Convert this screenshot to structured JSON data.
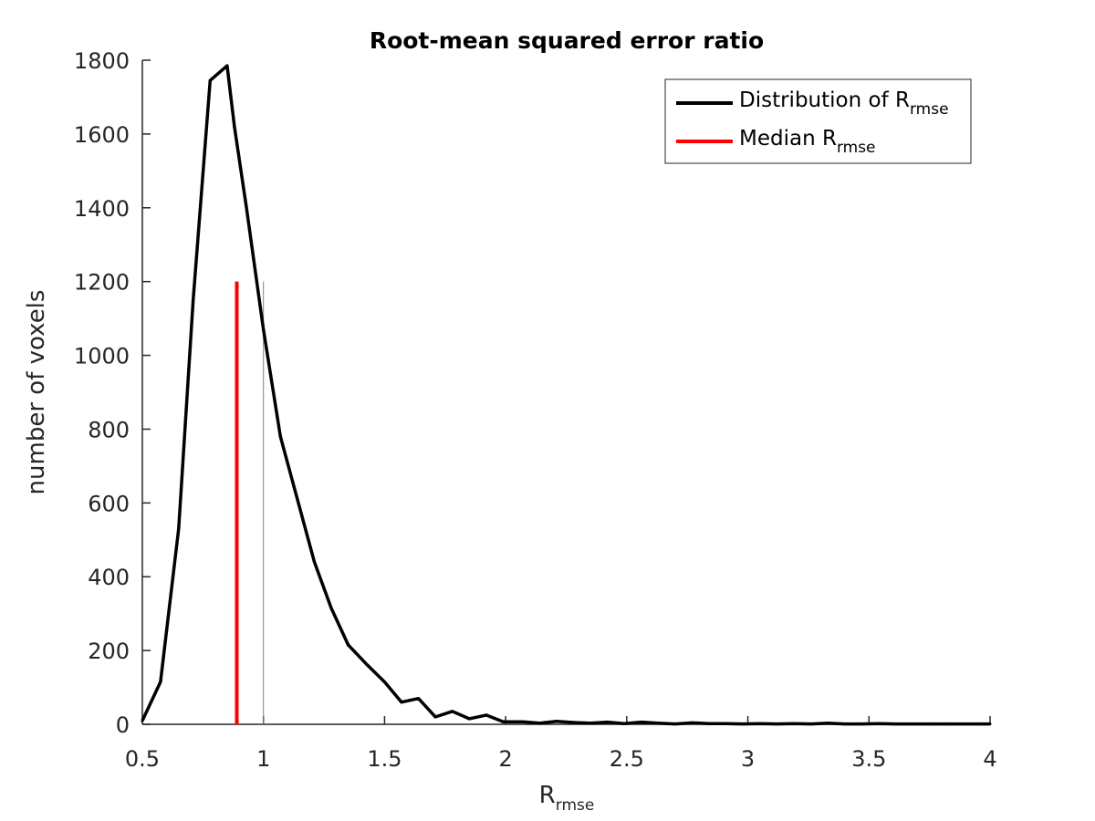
{
  "chart_data": {
    "type": "line",
    "title": "Root-mean squared error ratio",
    "xlabel": "R",
    "xlabel_sub": "rmse",
    "ylabel": "number of voxels",
    "xlim": [
      0.5,
      4
    ],
    "ylim": [
      0,
      1800
    ],
    "xticks": [
      0.5,
      1,
      1.5,
      2,
      2.5,
      3,
      3.5,
      4
    ],
    "xtick_labels": [
      "0.5",
      "1",
      "1.5",
      "2",
      "2.5",
      "3",
      "3.5",
      "4"
    ],
    "yticks": [
      0,
      200,
      400,
      600,
      800,
      1000,
      1200,
      1400,
      1600,
      1800
    ],
    "ytick_labels": [
      "0",
      "200",
      "400",
      "600",
      "800",
      "1000",
      "1200",
      "1400",
      "1600",
      "1800"
    ],
    "grid": false,
    "legend_position": "top-right",
    "legend": [
      {
        "label": "Distribution of R",
        "sub": "rmse",
        "color": "#000000"
      },
      {
        "label": "Median R",
        "sub": "rmse",
        "color": "#ff0000"
      }
    ],
    "series": [
      {
        "name": "Distribution of Rrmse",
        "color": "#000000",
        "x": [
          0.5,
          0.575,
          0.65,
          0.71,
          0.78,
          0.85,
          0.88,
          0.93,
          1.0,
          1.07,
          1.14,
          1.21,
          1.28,
          1.35,
          1.43,
          1.5,
          1.57,
          1.64,
          1.71,
          1.78,
          1.85,
          1.92,
          1.99,
          2.07,
          2.14,
          2.21,
          2.28,
          2.35,
          2.42,
          2.49,
          2.56,
          2.63,
          2.7,
          2.77,
          2.84,
          2.91,
          2.98,
          3.05,
          3.12,
          3.19,
          3.26,
          3.33,
          3.4,
          3.47,
          3.54,
          3.61,
          3.68,
          3.75,
          3.82,
          3.89,
          3.96,
          4.0
        ],
        "y": [
          10,
          115,
          530,
          1150,
          1745,
          1785,
          1620,
          1400,
          1070,
          780,
          610,
          440,
          315,
          215,
          160,
          115,
          60,
          70,
          20,
          35,
          15,
          25,
          7,
          7,
          3,
          8,
          5,
          3,
          6,
          2,
          6,
          3,
          1,
          4,
          2,
          2,
          1,
          2,
          1,
          2,
          1,
          3,
          1,
          1,
          2,
          1,
          1,
          1,
          1,
          1,
          1,
          1
        ]
      }
    ],
    "median": {
      "name": "Median Rrmse",
      "x": 0.89,
      "y_top": 1200,
      "color": "#ff0000"
    },
    "reference_line": {
      "x": 1,
      "y_top": 1200,
      "color": "#808080"
    }
  }
}
